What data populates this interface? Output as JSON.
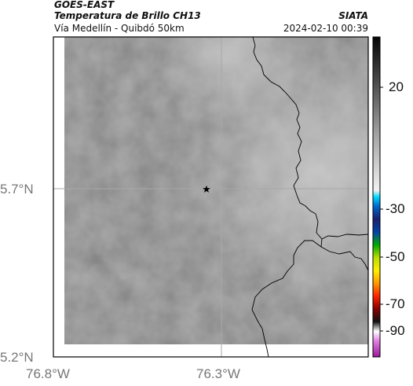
{
  "header": {
    "satellite": "GOES-EAST",
    "product": "Temperatura de Brillo CH13",
    "agency": "SIATA",
    "region": "Vía Medellín - Quibdó 50km",
    "datetime": "2024-02-10 00:39"
  },
  "map": {
    "lat_ticks": [
      "5.7°N",
      "5.2°N"
    ],
    "lon_ticks": [
      "76.8°W",
      "76.3°W"
    ],
    "marker": "star-marker",
    "colors": {
      "frame": "#000000",
      "gridline": "#a8a8a8",
      "boundary": "#000000"
    }
  },
  "colorbar": {
    "ticks": [
      "20",
      "-30",
      "-50",
      "-70",
      "-90"
    ],
    "colors": [
      "#000000",
      "#3a3a3a",
      "#7a7a7a",
      "#bdbdbd",
      "#e8e8e8",
      "#00c8ff",
      "#1a2ab0",
      "#00a000",
      "#ffff00",
      "#ff6600",
      "#cc0000",
      "#000000",
      "#ffffff",
      "#a000a0"
    ]
  }
}
